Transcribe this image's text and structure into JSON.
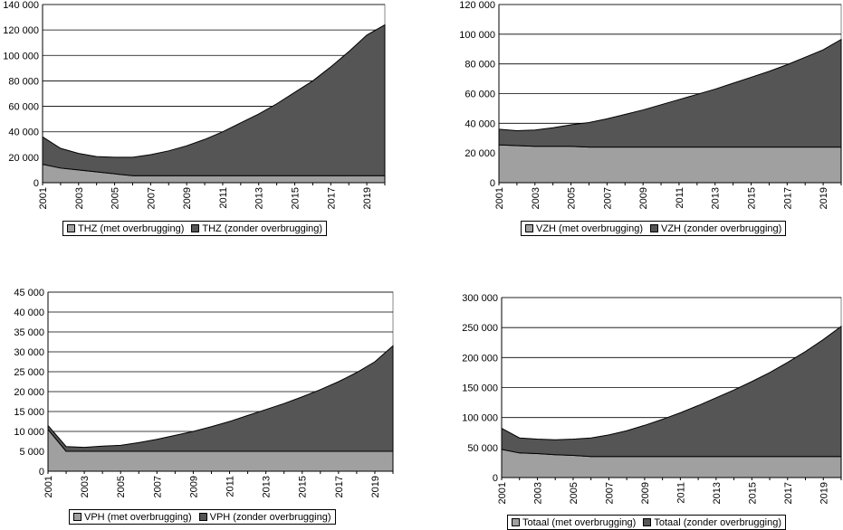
{
  "chart_data": [
    {
      "type": "area",
      "stacked": true,
      "x": [
        2001,
        2002,
        2003,
        2004,
        2005,
        2006,
        2007,
        2008,
        2009,
        2010,
        2011,
        2012,
        2013,
        2014,
        2015,
        2016,
        2017,
        2018,
        2019,
        2020
      ],
      "x_tick_labels": [
        "2001",
        "2003",
        "2005",
        "2007",
        "2009",
        "2011",
        "2013",
        "2015",
        "2017",
        "2019"
      ],
      "y_tick_labels": [
        "0",
        "20 000",
        "40 000",
        "60 000",
        "80 000",
        "100 000",
        "120 000",
        "140 000"
      ],
      "ylim": [
        0,
        140000
      ],
      "grid": true,
      "legend_position": "bottom",
      "series": [
        {
          "name": "THZ (met overbrugging)",
          "color": "#a0a0a0",
          "values": [
            14500,
            11500,
            10000,
            8500,
            7000,
            5500,
            5500,
            5500,
            5500,
            5500,
            5500,
            5500,
            5500,
            5500,
            5500,
            5500,
            5500,
            5500,
            5500,
            5500
          ]
        },
        {
          "name": "THZ (zonder overbrugging)",
          "color": "#555555",
          "values": [
            21500,
            15500,
            13000,
            12000,
            13000,
            14500,
            16500,
            19500,
            23500,
            28500,
            34500,
            41500,
            48500,
            56500,
            65500,
            74500,
            85500,
            97500,
            110500,
            118500
          ]
        }
      ]
    },
    {
      "type": "area",
      "stacked": true,
      "x": [
        2001,
        2002,
        2003,
        2004,
        2005,
        2006,
        2007,
        2008,
        2009,
        2010,
        2011,
        2012,
        2013,
        2014,
        2015,
        2016,
        2017,
        2018,
        2019,
        2020
      ],
      "x_tick_labels": [
        "2001",
        "2003",
        "2005",
        "2007",
        "2009",
        "2011",
        "2013",
        "2015",
        "2017",
        "2019"
      ],
      "y_tick_labels": [
        "0",
        "20 000",
        "40 000",
        "60 000",
        "80 000",
        "100 000",
        "120 000"
      ],
      "ylim": [
        0,
        120000
      ],
      "grid": true,
      "legend_position": "bottom",
      "series": [
        {
          "name": "VZH (met overbrugging)",
          "color": "#a0a0a0",
          "values": [
            25500,
            25000,
            24500,
            24500,
            24500,
            24000,
            24000,
            24000,
            24000,
            24000,
            24000,
            24000,
            24000,
            24000,
            24000,
            24000,
            24000,
            24000,
            24000,
            24000
          ]
        },
        {
          "name": "VZH (zonder overbrugging)",
          "color": "#555555",
          "values": [
            10500,
            10000,
            11000,
            12500,
            14500,
            16500,
            19000,
            22000,
            25000,
            28500,
            32000,
            35500,
            39000,
            43000,
            47000,
            51000,
            55500,
            60500,
            65500,
            72500
          ]
        }
      ]
    },
    {
      "type": "area",
      "stacked": true,
      "x": [
        2001,
        2002,
        2003,
        2004,
        2005,
        2006,
        2007,
        2008,
        2009,
        2010,
        2011,
        2012,
        2013,
        2014,
        2015,
        2016,
        2017,
        2018,
        2019,
        2020
      ],
      "x_tick_labels": [
        "2001",
        "2003",
        "2005",
        "2007",
        "2009",
        "2011",
        "2013",
        "2015",
        "2017",
        "2019"
      ],
      "y_tick_labels": [
        "0",
        "5 000",
        "10 000",
        "15 000",
        "20 000",
        "25 000",
        "30 000",
        "35 000",
        "40 000",
        "45 000"
      ],
      "ylim": [
        0,
        45000
      ],
      "grid": true,
      "legend_position": "bottom",
      "series": [
        {
          "name": "VPH (met overbrugging)",
          "color": "#a0a0a0",
          "values": [
            10500,
            5000,
            5000,
            5000,
            5000,
            5000,
            5000,
            5000,
            5000,
            5000,
            5000,
            5000,
            5000,
            5000,
            5000,
            5000,
            5000,
            5000,
            5000,
            5000
          ]
        },
        {
          "name": "VPH (zonder overbrugging)",
          "color": "#555555",
          "values": [
            1000,
            1200,
            1000,
            1300,
            1500,
            2200,
            3000,
            4000,
            5000,
            6200,
            7500,
            9000,
            10500,
            12000,
            13700,
            15500,
            17500,
            19800,
            22500,
            26500
          ]
        }
      ]
    },
    {
      "type": "area",
      "stacked": true,
      "x": [
        2001,
        2002,
        2003,
        2004,
        2005,
        2006,
        2007,
        2008,
        2009,
        2010,
        2011,
        2012,
        2013,
        2014,
        2015,
        2016,
        2017,
        2018,
        2019,
        2020
      ],
      "x_tick_labels": [
        "2001",
        "2003",
        "2005",
        "2007",
        "2009",
        "2011",
        "2013",
        "2015",
        "2017",
        "2019"
      ],
      "y_tick_labels": [
        "0",
        "50 000",
        "100 000",
        "150 000",
        "200 000",
        "250 000",
        "300 000"
      ],
      "ylim": [
        0,
        300000
      ],
      "grid": true,
      "legend_position": "bottom",
      "series": [
        {
          "name": "Totaal (met overbrugging)",
          "color": "#a0a0a0",
          "values": [
            47000,
            41000,
            40000,
            38000,
            37000,
            35000,
            35000,
            35000,
            35000,
            35000,
            35000,
            35000,
            35000,
            35000,
            35000,
            35000,
            35000,
            35000,
            35000,
            35000
          ]
        },
        {
          "name": "Totaal (zonder overbrugging)",
          "color": "#555555",
          "values": [
            35000,
            25000,
            24000,
            25000,
            27000,
            31000,
            36000,
            43000,
            52000,
            62000,
            73000,
            85000,
            98000,
            111000,
            125000,
            140000,
            157000,
            175000,
            195000,
            217000
          ]
        }
      ]
    }
  ]
}
